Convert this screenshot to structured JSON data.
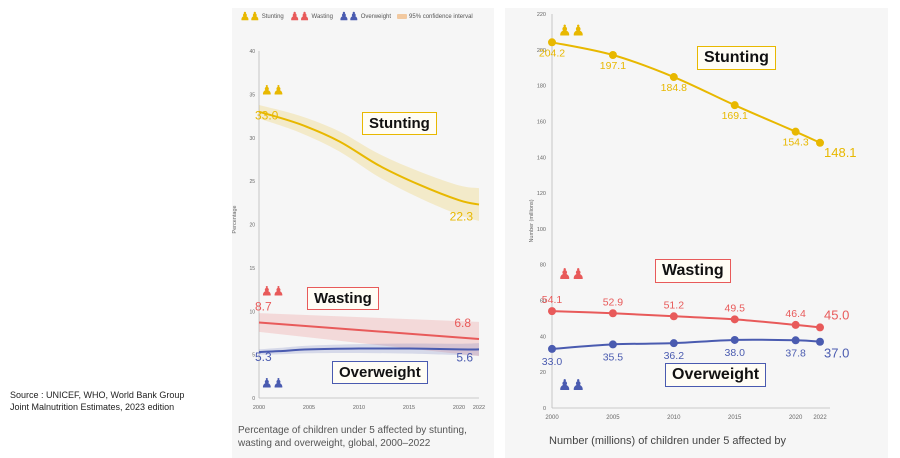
{
  "source": {
    "line1": "Source : UNICEF, WHO, World Bank Group",
    "line2": "Joint Malnutrition Estimates, 2023 edition"
  },
  "colors": {
    "stunting": "#e8b800",
    "wasting": "#e85a5a",
    "overweight": "#4a5bb0",
    "ci_band": "#f2c9a0"
  },
  "legend": {
    "stunting": "Stunting",
    "wasting": "Wasting",
    "overweight": "Overweight",
    "ci": "95% confidence interval"
  },
  "chart_data": [
    {
      "type": "line",
      "caption_line1": "Percentage of children under 5 affected by stunting,",
      "caption_line2": "wasting and overweight, global, 2000–2022",
      "ylabel": "Percentage",
      "ylim": [
        0,
        40
      ],
      "yticks": [
        0,
        5,
        10,
        15,
        20,
        25,
        30,
        35,
        40
      ],
      "xticks": [
        2000,
        2005,
        2010,
        2015,
        2020,
        2022
      ],
      "labels": {
        "stunting": "Stunting",
        "wasting": "Wasting",
        "overweight": "Overweight"
      },
      "series": [
        {
          "name": "Stunting",
          "x": [
            2000,
            2004,
            2008,
            2012,
            2016,
            2020,
            2022
          ],
          "y": [
            33.0,
            31.6,
            29.6,
            26.8,
            24.6,
            22.8,
            22.3
          ],
          "start_label": "33.0",
          "end_label": "22.3"
        },
        {
          "name": "Wasting",
          "x": [
            2000,
            2022
          ],
          "y": [
            8.7,
            6.8
          ],
          "start_label": "8.7",
          "end_label": "6.8"
        },
        {
          "name": "Overweight",
          "x": [
            2000,
            2002,
            2005,
            2010,
            2015,
            2020,
            2022
          ],
          "y": [
            5.3,
            5.4,
            5.6,
            5.7,
            5.7,
            5.6,
            5.6
          ],
          "start_label": "5.3",
          "end_label": "5.6"
        }
      ]
    },
    {
      "type": "line",
      "caption_line1": "Number (millions) of children under 5 affected by",
      "ylabel": "Number (millions)",
      "ylim": [
        0,
        220
      ],
      "yticks": [
        0,
        20,
        40,
        60,
        80,
        100,
        120,
        140,
        160,
        180,
        200,
        220
      ],
      "xticks": [
        2000,
        2005,
        2010,
        2015,
        2020,
        2022
      ],
      "labels": {
        "stunting": "Stunting",
        "wasting": "Wasting",
        "overweight": "Overweight"
      },
      "series": [
        {
          "name": "Stunting",
          "x": [
            2000,
            2005,
            2010,
            2015,
            2020,
            2022
          ],
          "y": [
            204.2,
            197.1,
            184.8,
            169.1,
            154.3,
            148.1
          ],
          "labels": [
            "204.2",
            "197.1",
            "184.8",
            "169.1",
            "154.3",
            "148.1"
          ]
        },
        {
          "name": "Wasting",
          "x": [
            2000,
            2005,
            2010,
            2015,
            2020,
            2022
          ],
          "y": [
            54.1,
            52.9,
            51.2,
            49.5,
            46.4,
            45.0
          ],
          "labels": [
            "54.1",
            "52.9",
            "51.2",
            "49.5",
            "46.4",
            "45.0"
          ]
        },
        {
          "name": "Overweight",
          "x": [
            2000,
            2005,
            2010,
            2015,
            2020,
            2022
          ],
          "y": [
            33.0,
            35.5,
            36.2,
            38.0,
            37.8,
            37.0
          ],
          "labels": [
            "33.0",
            "35.5",
            "36.2",
            "38.0",
            "37.8",
            "37.0"
          ]
        }
      ]
    }
  ]
}
